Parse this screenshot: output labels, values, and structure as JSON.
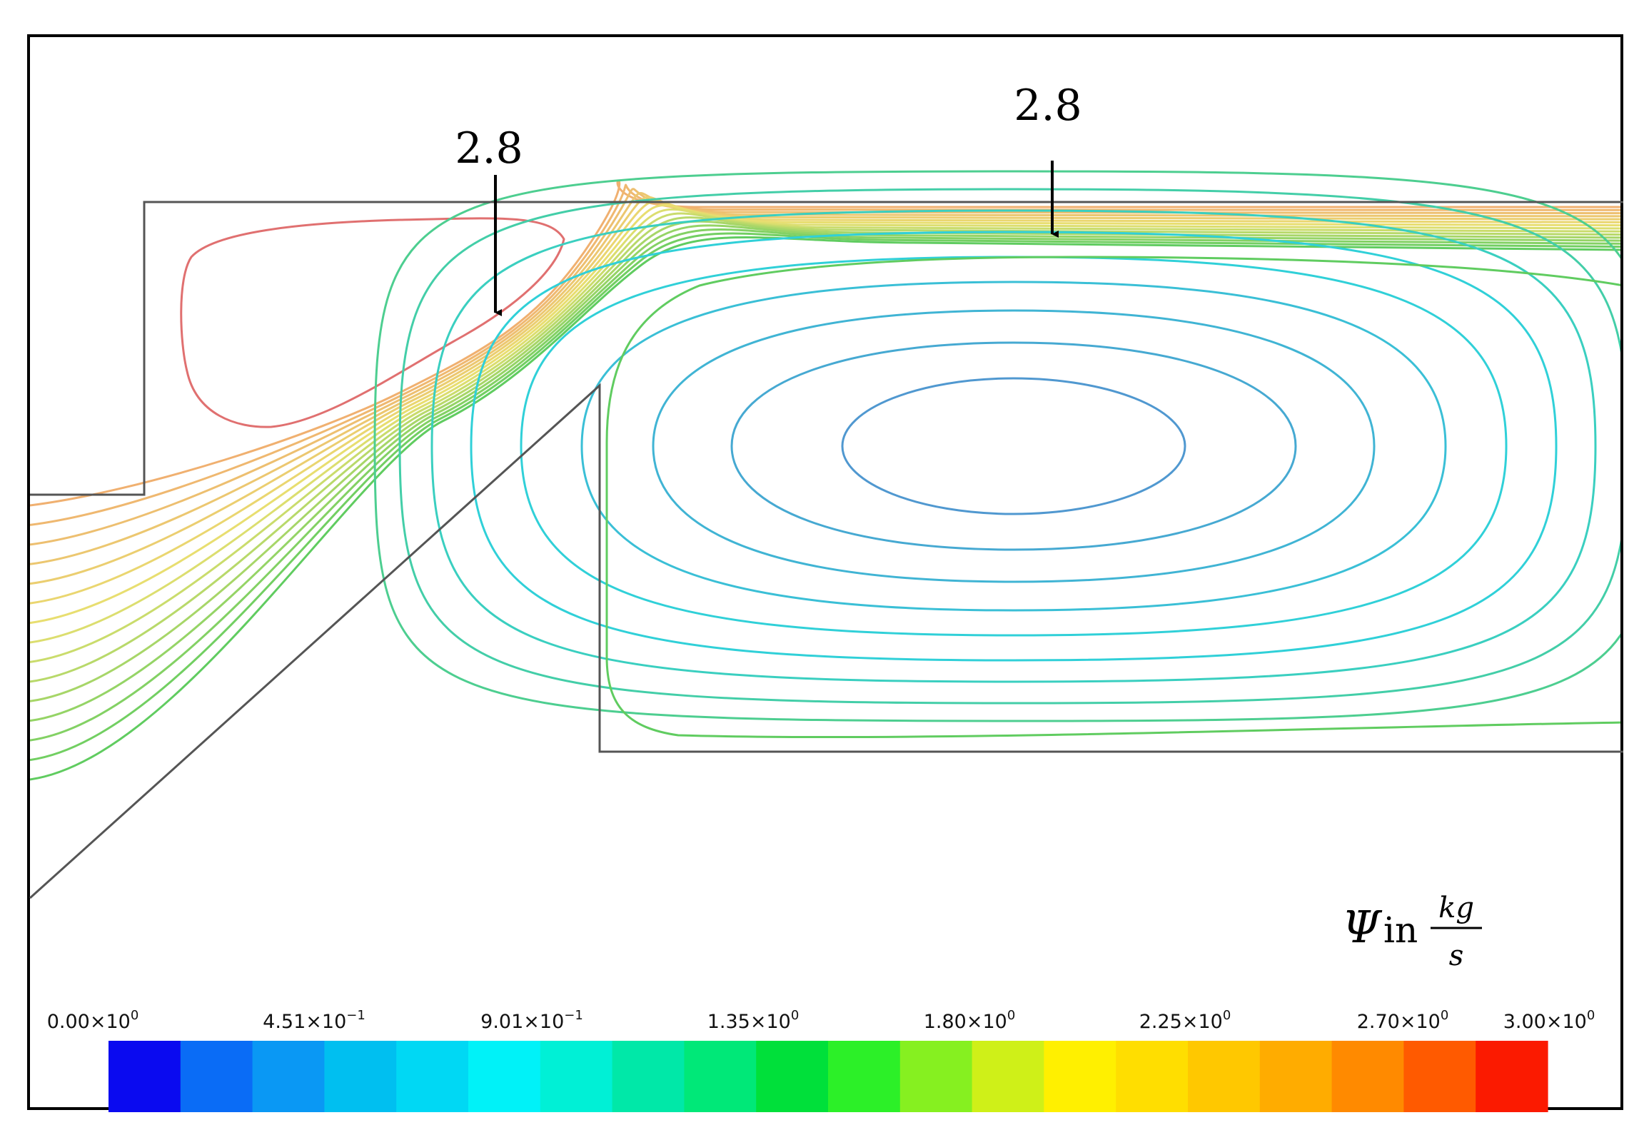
{
  "annotations": [
    {
      "label": "2.8"
    },
    {
      "label": "2.8"
    }
  ],
  "unit_label": {
    "symbol": "Ψ",
    "word": "in",
    "numerator": "kg",
    "denominator": "s"
  },
  "colorbar": {
    "tick_labels": [
      {
        "mant": "0.00×10",
        "exp": "0"
      },
      {
        "mant": "4.51×10",
        "exp": "−1"
      },
      {
        "mant": "9.01×10",
        "exp": "−1"
      },
      {
        "mant": "1.35×10",
        "exp": "0"
      },
      {
        "mant": "1.80×10",
        "exp": "0"
      },
      {
        "mant": "2.25×10",
        "exp": "0"
      },
      {
        "mant": "2.70×10",
        "exp": "0"
      },
      {
        "mant": "3.00×10",
        "exp": "0"
      }
    ],
    "colors": [
      "#0a0af0",
      "#0a6cf6",
      "#0a98f4",
      "#00bff0",
      "#00d8f4",
      "#00f2f8",
      "#00f0d6",
      "#00e8a8",
      "#00e878",
      "#00e03a",
      "#2cf028",
      "#86f020",
      "#cff018",
      "#fff000",
      "#ffde00",
      "#ffc800",
      "#ffac00",
      "#ff8a00",
      "#ff5a00",
      "#fb1a00"
    ]
  },
  "contour_colors": {
    "red": "#e07070",
    "orange": "#f0b070",
    "yellow": "#e8e070",
    "green": "#60cc60",
    "cyan": "#30d0d8",
    "blue": "#5098d0",
    "boundary": "#555555"
  }
}
